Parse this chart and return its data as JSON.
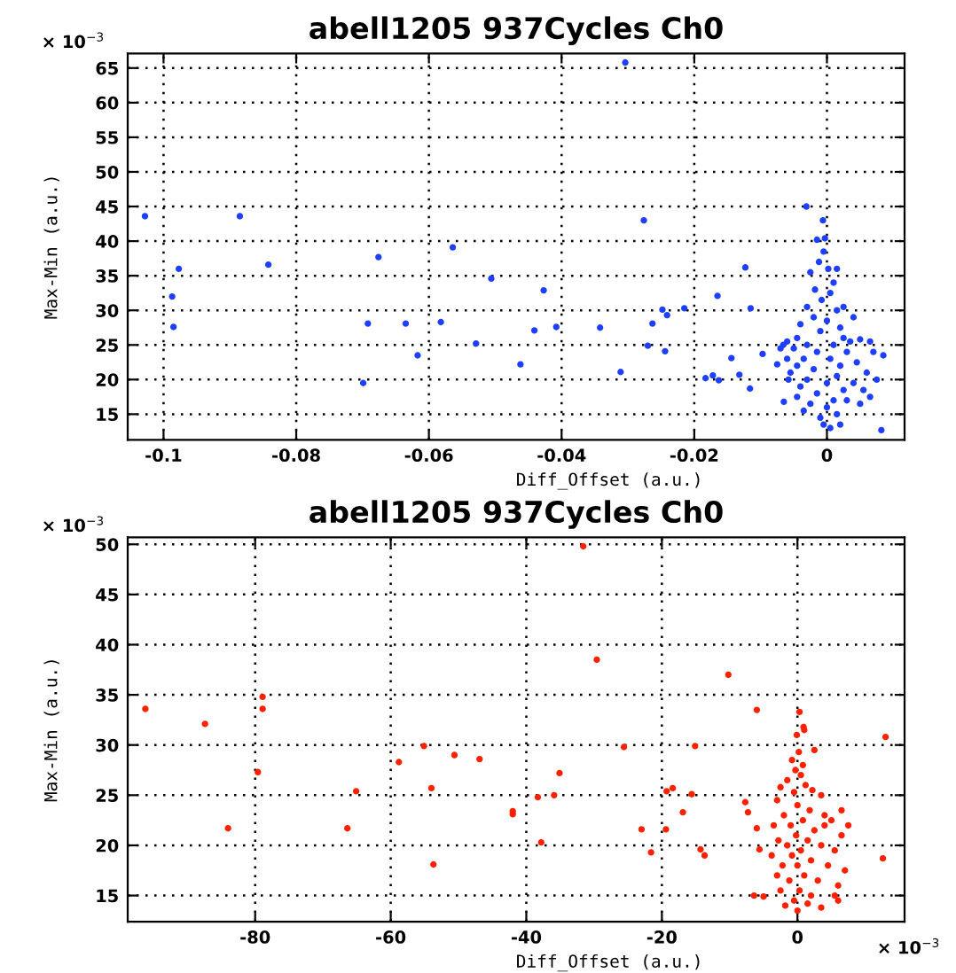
{
  "chart_data": [
    {
      "type": "scatter",
      "title": "abell1205 937Cycles Ch0",
      "xlabel": "Diff_Offset (a.u.)",
      "ylabel": "Max-Min (a.u.)",
      "annotations": [
        "× 10$^{−3}$"
      ],
      "grid": true,
      "marker": "circle",
      "xlim": [
        -0.1054,
        0.0117
      ],
      "ylim": [
        11.3,
        67.1
      ],
      "xticks": [
        -0.1,
        -0.08,
        -0.06,
        -0.04,
        -0.02,
        0
      ],
      "yticks": [
        15,
        20,
        25,
        30,
        35,
        40,
        45,
        50,
        55,
        60,
        65
      ],
      "series": [
        {
          "color": "#1f3fff",
          "x": [
            -0.1028,
            -0.0885,
            -0.0304,
            -0.0276,
            -0.0031,
            -0.0006,
            -0.0015,
            -0.0003,
            -0.0977,
            -0.0987,
            -0.0985,
            -0.0842,
            -0.0676,
            -0.0564,
            -0.0692,
            -0.0699,
            -0.0635,
            -0.0582,
            -0.0617,
            -0.0529,
            -0.0506,
            -0.0427,
            -0.0462,
            -0.0441,
            -0.0408,
            -0.0342,
            -0.0311,
            -0.027,
            -0.0263,
            -0.0248,
            -0.0241,
            -0.0244,
            -0.0215,
            -0.0183,
            -0.0172,
            -0.0163,
            -0.0165,
            -0.0144,
            -0.0132,
            -0.0123,
            -0.0115,
            -0.0116,
            -0.0097,
            -0.0075,
            -0.0066,
            -0.0005,
            -0.0012,
            0.0002,
            -0.0025,
            0.001,
            -0.0018,
            0.0005,
            -0.0008,
            -0.003,
            0.0015,
            -0.002,
            0.0,
            -0.004,
            0.002,
            -0.001,
            -0.0045,
            0.0025,
            -0.003,
            0.001,
            -0.005,
            -0.0015,
            0.003,
            -0.0035,
            0.0005,
            -0.0045,
            0.002,
            -0.002,
            -0.0055,
            0.0015,
            -0.003,
            0.0,
            -0.004,
            0.0025,
            -0.0015,
            -0.0045,
            0.001,
            -0.0025,
            0.0,
            -0.0035,
            0.0015,
            -0.001,
            -0.0005,
            0.0005,
            0.002,
            0.0035,
            0.005,
            0.0065,
            0.007,
            0.0045,
            0.006,
            0.0075,
            0.004,
            0.0055,
            0.0065,
            0.003,
            0.005,
            0.0085,
            0.0082,
            0.004,
            0.0025,
            0.0015,
            -0.006,
            -0.006,
            -0.0058,
            -0.0065,
            -0.007
          ],
          "values": [
            43.6,
            43.6,
            65.8,
            43.0,
            45.0,
            43.0,
            40.2,
            40.4,
            36.0,
            32.0,
            27.6,
            36.6,
            37.7,
            39.1,
            28.1,
            19.5,
            28.1,
            28.3,
            23.5,
            25.2,
            34.6,
            32.9,
            22.2,
            27.1,
            27.6,
            27.5,
            21.1,
            24.9,
            28.1,
            30.1,
            29.3,
            24.1,
            30.3,
            20.2,
            20.6,
            19.9,
            32.1,
            23.1,
            20.7,
            36.2,
            30.3,
            18.7,
            23.7,
            22.2,
            25.0,
            38.5,
            37.0,
            36.0,
            35.5,
            34.0,
            33.0,
            32.5,
            31.5,
            30.5,
            30.0,
            29.0,
            28.5,
            28.0,
            27.5,
            27.0,
            26.0,
            26.0,
            25.0,
            25.0,
            24.5,
            24.0,
            24.0,
            23.0,
            23.0,
            22.0,
            22.0,
            21.5,
            21.0,
            20.5,
            20.0,
            19.5,
            19.0,
            18.5,
            18.0,
            17.5,
            17.0,
            16.5,
            16.0,
            15.5,
            15.0,
            14.5,
            13.5,
            13.0,
            13.5,
            25.5,
            25.8,
            25.5,
            24.0,
            22.5,
            21.0,
            20.0,
            19.5,
            18.5,
            17.5,
            17.0,
            16.5,
            23.5,
            12.7,
            29.0,
            30.5,
            36.0,
            25.5,
            23.0,
            20.0,
            16.8,
            24.5
          ]
        }
      ]
    },
    {
      "type": "scatter",
      "title": "abell1205 937Cycles Ch0",
      "xlabel": "Diff_Offset (a.u.)",
      "ylabel": "Max-Min (a.u.)",
      "annotations": [
        "× 10$^{−3}$",
        "× 10$^{−3}$"
      ],
      "grid": true,
      "marker": "circle",
      "xlim": [
        -98.8,
        15.8
      ],
      "ylim": [
        12.4,
        50.7
      ],
      "xticks": [
        -80,
        -60,
        -40,
        -20,
        0
      ],
      "yticks": [
        15,
        20,
        25,
        30,
        35,
        40,
        45,
        50
      ],
      "series": [
        {
          "color": "#ff2000",
          "x": [
            -96.2,
            -87.4,
            -78.9,
            -78.9,
            -31.6,
            -29.6,
            -10.2,
            -6.0,
            0.3,
            -0.1,
            0.9,
            13.0,
            -79.6,
            -84.0,
            -66.4,
            -65.1,
            -58.8,
            -55.1,
            -50.6,
            -46.9,
            -54.0,
            -53.7,
            -42.0,
            -42.0,
            -38.3,
            -35.9,
            -35.1,
            -37.8,
            -25.6,
            -23.0,
            -21.6,
            -19.3,
            -18.4,
            -19.4,
            -16.9,
            -15.1,
            -15.6,
            -14.3,
            -13.7,
            -7.7,
            -7.3,
            -6.0,
            -5.6,
            -6.4,
            -5.0,
            12.6,
            0.2,
            -0.8,
            0.8,
            2.5,
            -0.3,
            0.5,
            -1.5,
            1.2,
            -2.5,
            2.2,
            -0.5,
            3.5,
            -3.0,
            0.0,
            1.8,
            -2.0,
            4.0,
            0.8,
            -3.5,
            -1.0,
            5.0,
            2.5,
            -0.2,
            -2.8,
            1.5,
            6.5,
            -1.5,
            3.5,
            0.5,
            -3.8,
            -0.8,
            5.5,
            2.0,
            -2.2,
            0.0,
            4.5,
            7.0,
            -3.0,
            1.0,
            -1.2,
            3.0,
            6.0,
            -2.5,
            0.3,
            2.0,
            5.5,
            -0.5,
            1.5,
            -1.8,
            0.0,
            3.5,
            6.0,
            7.5,
            6.5,
            4.0,
            1.0
          ],
          "values": [
            33.6,
            32.1,
            34.8,
            33.6,
            49.8,
            38.5,
            37.0,
            33.5,
            33.3,
            31.0,
            31.8,
            30.8,
            27.3,
            21.7,
            21.7,
            25.4,
            28.3,
            29.9,
            29.0,
            28.6,
            25.7,
            18.1,
            23.4,
            23.1,
            24.8,
            25.0,
            27.2,
            20.3,
            29.8,
            21.6,
            19.3,
            25.4,
            25.7,
            21.6,
            23.3,
            29.9,
            25.1,
            19.6,
            19.0,
            24.3,
            23.3,
            21.7,
            19.6,
            15.0,
            14.9,
            18.7,
            29.3,
            28.5,
            28.0,
            29.5,
            27.5,
            27.0,
            26.5,
            26.0,
            25.8,
            25.5,
            25.3,
            25.0,
            24.5,
            24.0,
            23.5,
            23.0,
            23.0,
            22.5,
            22.0,
            22.0,
            22.5,
            21.5,
            21.0,
            20.5,
            20.5,
            21.0,
            20.0,
            20.0,
            19.5,
            19.0,
            19.0,
            19.5,
            18.5,
            18.0,
            18.0,
            18.0,
            17.5,
            17.0,
            17.0,
            16.5,
            16.5,
            16.0,
            15.5,
            15.5,
            15.0,
            15.0,
            14.5,
            14.2,
            14.0,
            13.5,
            13.8,
            14.5,
            22.0,
            23.5,
            22.0,
            31.5
          ]
        }
      ]
    }
  ]
}
